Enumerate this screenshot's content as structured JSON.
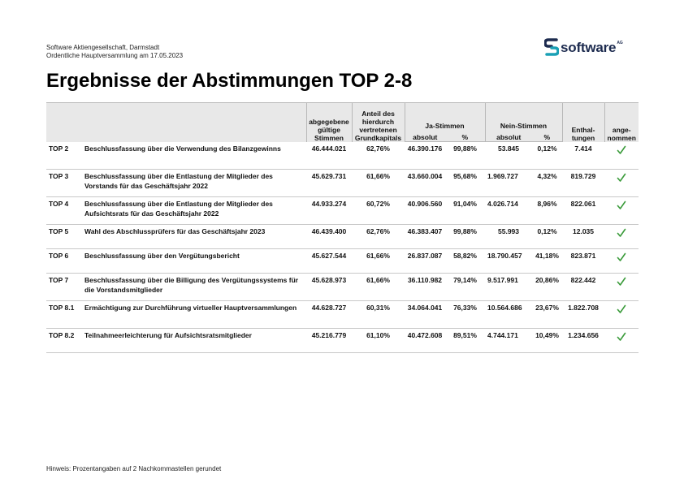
{
  "header": {
    "company_line": "Software Aktiengesellschaft, Darmstadt",
    "meeting_line": "Ordentliche Hauptversammlung am 17.05.2023",
    "logo_text": "software",
    "logo_suffix": "AG",
    "logo_icon": "software-ag-s-icon"
  },
  "title": "Ergebnisse der Abstimmungen TOP 2-8",
  "table": {
    "headers": {
      "abgegebene": "abgegebene gültige Stimmen",
      "anteil": "Anteil des hierdurch vertretenen Grundkapitals",
      "ja": "Ja-Stimmen",
      "nein": "Nein-Stimmen",
      "enthaltungen": "Enthal- tungen",
      "angenommen": "ange- nommen",
      "absolut": "absolut",
      "prozent": "%"
    },
    "rows": [
      {
        "top": "TOP 2",
        "item": "Beschlussfassung über die Verwendung des Bilanzgewinns",
        "votes": "46.444.021",
        "share": "62,76%",
        "yes_abs": "46.390.176",
        "yes_pct": "99,88%",
        "no_abs": "53.845",
        "no_pct": "0,12%",
        "abst": "7.414",
        "accepted": "check-icon"
      },
      {
        "top": "TOP 3",
        "item": "Beschlussfassung über die Entlastung der Mitglieder des Vorstands für das Geschäftsjahr 2022",
        "votes": "45.629.731",
        "share": "61,66%",
        "yes_abs": "43.660.004",
        "yes_pct": "95,68%",
        "no_abs": "1.969.727",
        "no_pct": "4,32%",
        "abst": "819.729",
        "accepted": "check-icon"
      },
      {
        "top": "TOP 4",
        "item": "Beschlussfassung über die Entlastung der Mitglieder des Aufsichtsrats für das Geschäftsjahr 2022",
        "votes": "44.933.274",
        "share": "60,72%",
        "yes_abs": "40.906.560",
        "yes_pct": "91,04%",
        "no_abs": "4.026.714",
        "no_pct": "8,96%",
        "abst": "822.061",
        "accepted": "check-icon"
      },
      {
        "top": "TOP 5",
        "item": "Wahl des Abschlussprüfers für das Geschäftsjahr 2023",
        "votes": "46.439.400",
        "share": "62,76%",
        "yes_abs": "46.383.407",
        "yes_pct": "99,88%",
        "no_abs": "55.993",
        "no_pct": "0,12%",
        "abst": "12.035",
        "accepted": "check-icon"
      },
      {
        "top": "TOP 6",
        "item": "Beschlussfassung über den Vergütungsbericht",
        "votes": "45.627.544",
        "share": "61,66%",
        "yes_abs": "26.837.087",
        "yes_pct": "58,82%",
        "no_abs": "18.790.457",
        "no_pct": "41,18%",
        "abst": "823.871",
        "accepted": "check-icon"
      },
      {
        "top": "TOP 7",
        "item": "Beschlussfassung über die Billigung des Vergütungssystems für die Vorstandsmitglieder",
        "votes": "45.628.973",
        "share": "61,66%",
        "yes_abs": "36.110.982",
        "yes_pct": "79,14%",
        "no_abs": "9.517.991",
        "no_pct": "20,86%",
        "abst": "822.442",
        "accepted": "check-icon"
      },
      {
        "top": "TOP 8.1",
        "item": "Ermächtigung zur Durchführung virtueller Hauptversammlungen",
        "votes": "44.628.727",
        "share": "60,31%",
        "yes_abs": "34.064.041",
        "yes_pct": "76,33%",
        "no_abs": "10.564.686",
        "no_pct": "23,67%",
        "abst": "1.822.708",
        "accepted": "check-icon"
      },
      {
        "top": "TOP 8.2",
        "item": "Teilnahmeerleichterung für Aufsichtsratsmitglieder",
        "votes": "45.216.779",
        "share": "61,10%",
        "yes_abs": "40.472.608",
        "yes_pct": "89,51%",
        "no_abs": "4.744.171",
        "no_pct": "10,49%",
        "abst": "1.234.656",
        "accepted": "check-icon"
      }
    ]
  },
  "footnote": "Hinweis: Prozentangaben auf 2 Nachkommastellen gerundet",
  "colors": {
    "header_bg": "#e8e8e8",
    "check_green": "#3a9b3a",
    "logo_navy": "#1d2b4f",
    "logo_teal": "#1aa0b5"
  }
}
